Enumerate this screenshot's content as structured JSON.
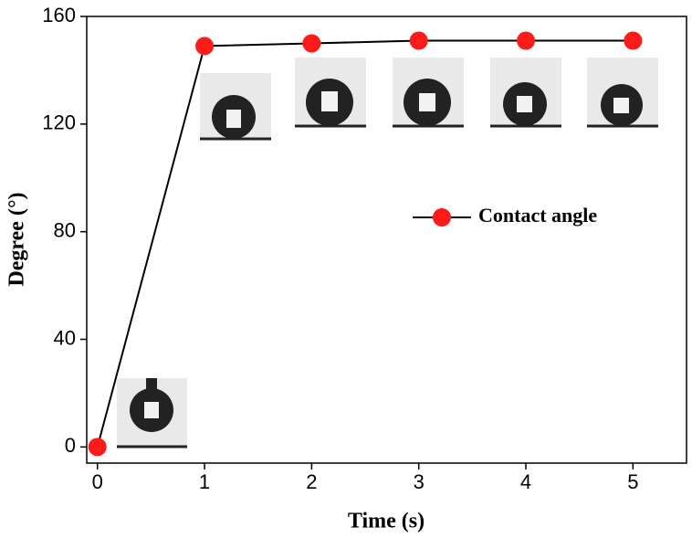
{
  "chart_data": {
    "type": "line",
    "xlabel": "Time (s)",
    "ylabel": "Degree (°)",
    "x": [
      0,
      1,
      2,
      3,
      4,
      5
    ],
    "series": [
      {
        "name": "Contact angle",
        "color": "#ff1a1a",
        "line_color": "#000000",
        "values": [
          0,
          149,
          150,
          151,
          151,
          151
        ]
      }
    ],
    "xlim": [
      -0.1,
      5.5
    ],
    "xticks": [
      0,
      1,
      2,
      3,
      4,
      5
    ],
    "ylim": [
      -6,
      160
    ],
    "yticks": [
      0,
      40,
      80,
      120,
      160
    ],
    "legend": "center right",
    "grid": false
  }
}
